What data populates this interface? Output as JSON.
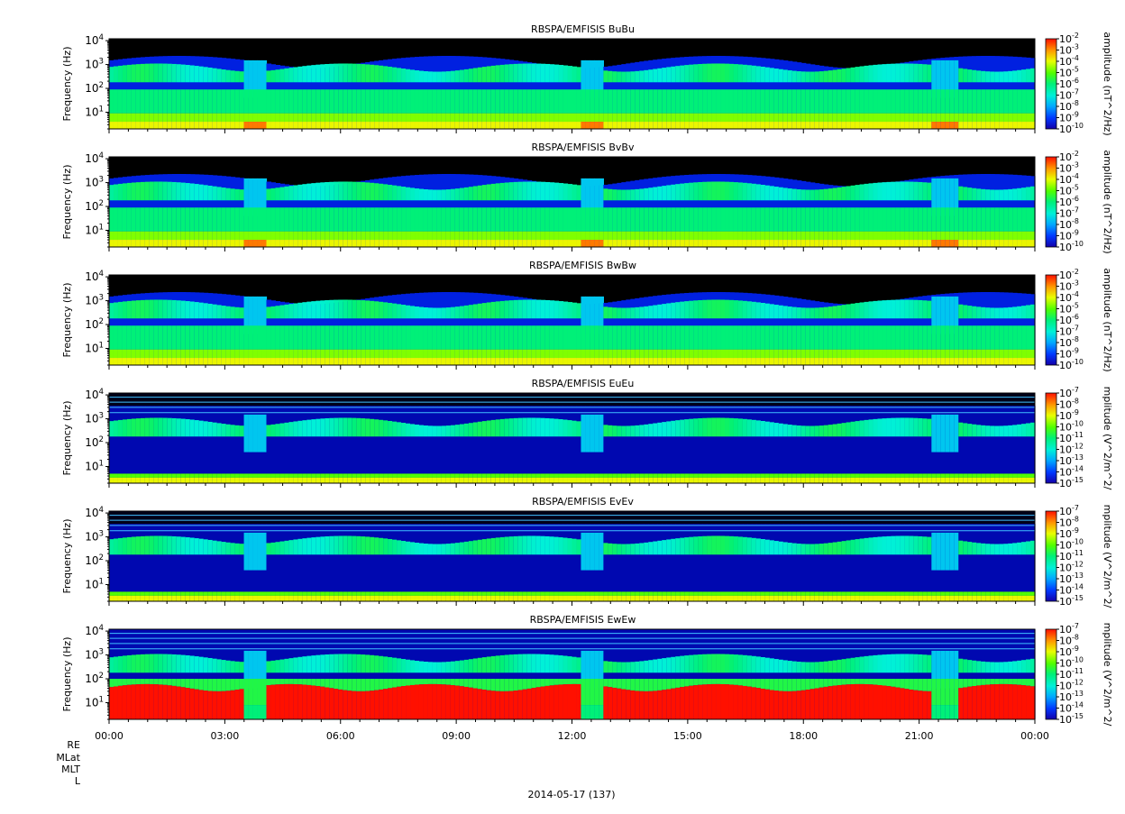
{
  "chart_data": {
    "type": "heatmap",
    "x_axis": {
      "ticks": [
        "00:00",
        "03:00",
        "06:00",
        "09:00",
        "12:00",
        "15:00",
        "18:00",
        "21:00",
        "00:00"
      ],
      "range_hours": [
        0,
        24
      ],
      "minor_ticks_per_hour": 2
    },
    "footer": {
      "date": "2014-05-17 (137)",
      "row_labels": [
        "RE",
        "MLat",
        "MLT",
        "L"
      ]
    },
    "panels": [
      {
        "title": "RBSPA/EMFISIS  BuBu",
        "ylabel": "Frequency (Hz)",
        "yscale": "log",
        "ylim": [
          2,
          12000
        ],
        "yticks": [
          "10^1",
          "10^2",
          "10^3",
          "10^4"
        ],
        "cbar": {
          "label": "amplitude (nT^2/Hz)",
          "ticks": [
            "10^-2",
            "10^-3",
            "10^-4",
            "10^-5",
            "10^-6",
            "10^-7",
            "10^-8",
            "10^-9",
            "10^-10"
          ]
        },
        "kind": "B",
        "lineBand": false,
        "redBottom": true
      },
      {
        "title": "RBSPA/EMFISIS  BvBv",
        "ylabel": "Frequency (Hz)",
        "yscale": "log",
        "ylim": [
          2,
          12000
        ],
        "yticks": [
          "10^1",
          "10^2",
          "10^3",
          "10^4"
        ],
        "cbar": {
          "label": "amplitude (nT^2/Hz)",
          "ticks": [
            "10^-2",
            "10^-3",
            "10^-4",
            "10^-5",
            "10^-6",
            "10^-7",
            "10^-8",
            "10^-9",
            "10^-10"
          ]
        },
        "kind": "B",
        "lineBand": false,
        "redBottom": true
      },
      {
        "title": "RBSPA/EMFISIS  BwBw",
        "ylabel": "Frequency (Hz)",
        "yscale": "log",
        "ylim": [
          2,
          12000
        ],
        "yticks": [
          "10^1",
          "10^2",
          "10^3",
          "10^4"
        ],
        "cbar": {
          "label": "amplitude (nT^2/Hz)",
          "ticks": [
            "10^-2",
            "10^-3",
            "10^-4",
            "10^-5",
            "10^-6",
            "10^-7",
            "10^-8",
            "10^-9",
            "10^-10"
          ]
        },
        "kind": "B",
        "lineBand": false,
        "redBottom": false
      },
      {
        "title": "RBSPA/EMFISIS  EuEu",
        "ylabel": "Frequency (Hz)",
        "yscale": "log",
        "ylim": [
          2,
          12000
        ],
        "yticks": [
          "10^1",
          "10^2",
          "10^3",
          "10^4"
        ],
        "cbar": {
          "label": "mplitude (V^2/m^2/",
          "ticks": [
            "10^-7",
            "10^-8",
            "10^-9",
            "10^-10",
            "10^-11",
            "10^-12",
            "10^-13",
            "10^-14",
            "10^-15"
          ]
        },
        "kind": "E",
        "lineBand": true,
        "redBottom": false
      },
      {
        "title": "RBSPA/EMFISIS  EvEv",
        "ylabel": "Frequency (Hz)",
        "yscale": "log",
        "ylim": [
          2,
          12000
        ],
        "yticks": [
          "10^1",
          "10^2",
          "10^3",
          "10^4"
        ],
        "cbar": {
          "label": "mplitude (V^2/m^2/",
          "ticks": [
            "10^-7",
            "10^-8",
            "10^-9",
            "10^-10",
            "10^-11",
            "10^-12",
            "10^-13",
            "10^-14",
            "10^-15"
          ]
        },
        "kind": "E",
        "lineBand": true,
        "redBottom": false
      },
      {
        "title": "RBSPA/EMFISIS  EwEw",
        "ylabel": "Frequency (Hz)",
        "yscale": "log",
        "ylim": [
          2,
          12000
        ],
        "yticks": [
          "10^1",
          "10^2",
          "10^3",
          "10^4"
        ],
        "cbar": {
          "label": "mplitude (V^2/m^2/",
          "ticks": [
            "10^-7",
            "10^-8",
            "10^-9",
            "10^-10",
            "10^-11",
            "10^-12",
            "10^-13",
            "10^-14",
            "10^-15"
          ]
        },
        "kind": "Ew",
        "lineBand": true,
        "redBottom": false
      }
    ]
  }
}
